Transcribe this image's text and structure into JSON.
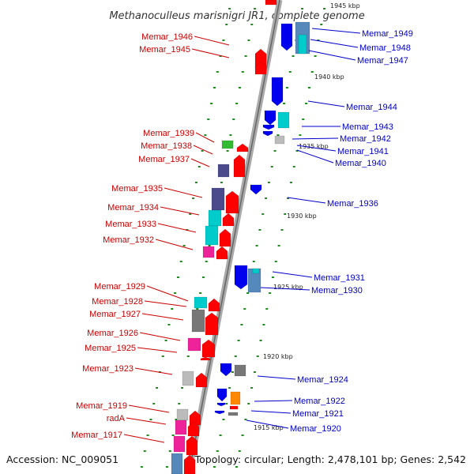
{
  "title": "Methanoculleus marisnigri JR1, complete genome",
  "footer": {
    "accession": "Accession: NC_009051",
    "summary": "Topology: circular; Length: 2,478,101 bp; Genes: 2,542"
  },
  "ticks": [
    "1945 kbp",
    "1940 kbp",
    "1935 kbp",
    "1930 kbp",
    "1925 kbp",
    "1920 kbp",
    "1915 kbp"
  ],
  "left_labels": [
    "Memar_1946",
    "Memar_1945",
    "Memar_1939",
    "Memar_1938",
    "Memar_1937",
    "Memar_1935",
    "Memar_1934",
    "Memar_1933",
    "Memar_1932",
    "Memar_1929",
    "Memar_1928",
    "Memar_1927",
    "Memar_1926",
    "Memar_1925",
    "Memar_1923",
    "Memar_1919",
    "radA",
    "Memar_1917"
  ],
  "right_labels": [
    "Memar_1949",
    "Memar_1948",
    "Memar_1947",
    "Memar_1944",
    "Memar_1943",
    "Memar_1942",
    "Memar_1941",
    "Memar_1940",
    "Memar_1936",
    "Memar_1931",
    "Memar_1930",
    "Memar_1924",
    "Memar_1922",
    "Memar_1921",
    "Memar_1920"
  ],
  "colors": {
    "forward": "#ff0000",
    "reverse": "#0000ee",
    "cog_purple": "#4a4a8c",
    "cog_cyan": "#00cccc",
    "cog_magenta": "#ee2299",
    "cog_gray": "#777777",
    "cog_lightgray": "#bbbbbb",
    "cog_green": "#33bb33",
    "cog_orange": "#ff8800",
    "cog_steel": "#5588bb",
    "axis": "#999999",
    "leader_left": "#cc0000",
    "leader_right": "#0000cc",
    "dots": "#228822"
  }
}
